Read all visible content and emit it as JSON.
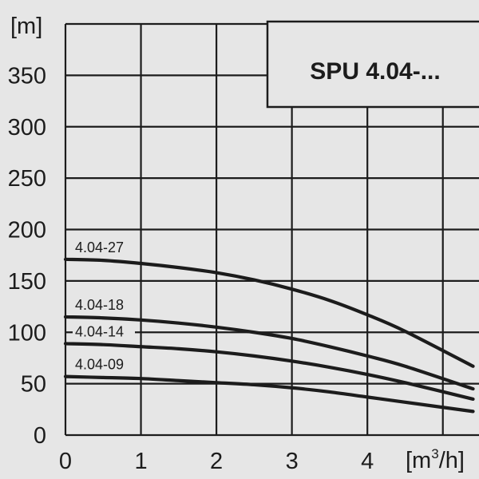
{
  "chart_data": {
    "type": "line",
    "title": "SPU 4.04-...",
    "y_unit": "[m]",
    "x_unit_base": "[m",
    "x_unit_sup": "3",
    "x_unit_tail": "/h]",
    "x_ticks": [
      "0",
      "1",
      "2",
      "3",
      "4"
    ],
    "y_ticks": [
      "0",
      "50",
      "100",
      "150",
      "200",
      "250",
      "300",
      "350"
    ],
    "xlim": [
      0,
      5.5
    ],
    "ylim": [
      0,
      400
    ],
    "grid": true,
    "series": [
      {
        "name": "4.04-27",
        "x": [
          0,
          0.5,
          1,
          1.5,
          2,
          2.5,
          3,
          3.5,
          4,
          4.5,
          5.4
        ],
        "y": [
          171,
          170,
          167,
          163,
          158,
          151,
          142,
          131,
          117,
          101,
          67
        ]
      },
      {
        "name": "4.04-18",
        "x": [
          0,
          0.5,
          1,
          1.5,
          2,
          2.5,
          3,
          3.5,
          4,
          4.5,
          5.4
        ],
        "y": [
          115,
          114,
          112,
          109,
          105,
          100,
          94,
          86,
          77,
          67,
          45
        ]
      },
      {
        "name": "4.04-14",
        "x": [
          0,
          0.5,
          1,
          1.5,
          2,
          2.5,
          3,
          3.5,
          4,
          4.5,
          5.4
        ],
        "y": [
          89,
          88,
          86,
          84,
          81,
          77,
          72,
          66,
          59,
          51,
          35
        ]
      },
      {
        "name": "4.04-09",
        "x": [
          0,
          0.5,
          1,
          1.5,
          2,
          2.5,
          3,
          3.5,
          4,
          4.5,
          5.4
        ],
        "y": [
          57,
          56,
          55,
          53,
          51,
          49,
          46,
          42,
          37,
          32,
          23
        ]
      }
    ]
  }
}
